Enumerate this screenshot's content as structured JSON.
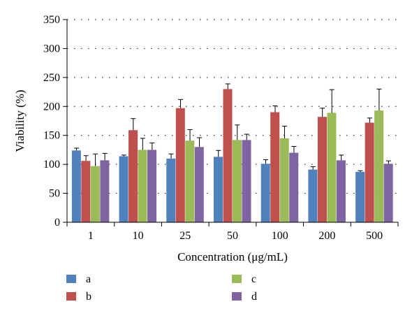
{
  "chart_data": {
    "type": "bar",
    "title": "",
    "xlabel": "Concentration (μg/mL)",
    "ylabel": "Viability (%)",
    "ylim": [
      0,
      350
    ],
    "yticks": [
      0,
      50,
      100,
      150,
      200,
      250,
      300,
      350
    ],
    "grid": "dotted horizontal",
    "legend_position": "bottom",
    "categories": [
      "1",
      "10",
      "25",
      "50",
      "100",
      "200",
      "500"
    ],
    "series": [
      {
        "name": "a",
        "color": "#4F81BD",
        "values": [
          124,
          114,
          110,
          113,
          101,
          91,
          87
        ],
        "errors": [
          4,
          2,
          8,
          11,
          7,
          5,
          2
        ]
      },
      {
        "name": "b",
        "color": "#C0504D",
        "values": [
          106,
          159,
          197,
          230,
          190,
          182,
          172
        ],
        "errors": [
          9,
          20,
          15,
          9,
          11,
          15,
          8
        ]
      },
      {
        "name": "c",
        "color": "#9BBB59",
        "values": [
          97,
          125,
          141,
          142,
          145,
          189,
          193
        ],
        "errors": [
          21,
          20,
          19,
          26,
          21,
          40,
          37
        ]
      },
      {
        "name": "d",
        "color": "#8064A2",
        "values": [
          107,
          125,
          130,
          142,
          120,
          107,
          101
        ],
        "errors": [
          12,
          12,
          16,
          10,
          11,
          9,
          5
        ]
      }
    ]
  }
}
